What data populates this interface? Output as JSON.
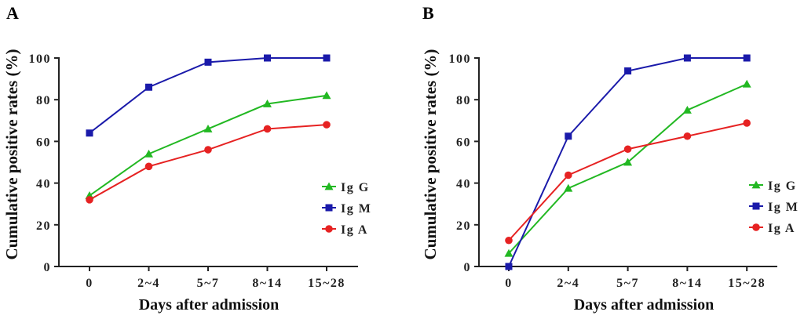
{
  "chart_data": [
    {
      "panel": "A",
      "type": "line",
      "title": "",
      "xlabel": "Days after admission",
      "ylabel": "Cumulative positive rates (%)",
      "categories": [
        "0",
        "2~4",
        "5~7",
        "8~14",
        "15~28"
      ],
      "ylim": [
        0,
        100
      ],
      "yticks": [
        "0",
        "20",
        "40",
        "60",
        "80",
        "100"
      ],
      "grid": false,
      "legend_position": "right",
      "series": [
        {
          "name": "IgG",
          "label": "Ig G",
          "marker": "triangle",
          "color": "#22b822",
          "values": [
            34,
            54,
            66,
            78,
            82
          ]
        },
        {
          "name": "IgM",
          "label": "Ig M",
          "marker": "square",
          "color": "#1a1aaa",
          "values": [
            64,
            86,
            98,
            100,
            100
          ]
        },
        {
          "name": "IgA",
          "label": "Ig A",
          "marker": "circle",
          "color": "#e62222",
          "values": [
            32,
            48,
            56,
            66,
            68
          ]
        }
      ]
    },
    {
      "panel": "B",
      "type": "line",
      "title": "",
      "xlabel": "Days after admission",
      "ylabel": "Cumulative positive rates (%)",
      "categories": [
        "0",
        "2~4",
        "5~7",
        "8~14",
        "15~28"
      ],
      "ylim": [
        0,
        100
      ],
      "yticks": [
        "0",
        "20",
        "40",
        "60",
        "80",
        "100"
      ],
      "grid": false,
      "legend_position": "right",
      "series": [
        {
          "name": "IgG",
          "label": "Ig G",
          "marker": "triangle",
          "color": "#22b822",
          "values": [
            6.3,
            37.5,
            50.0,
            75.0,
            87.5
          ]
        },
        {
          "name": "IgM",
          "label": "Ig M",
          "marker": "square",
          "color": "#1a1aaa",
          "values": [
            0,
            62.5,
            93.8,
            100,
            100
          ]
        },
        {
          "name": "IgA",
          "label": "Ig A",
          "marker": "circle",
          "color": "#e62222",
          "values": [
            12.5,
            43.8,
            56.3,
            62.5,
            68.8
          ]
        }
      ]
    }
  ]
}
